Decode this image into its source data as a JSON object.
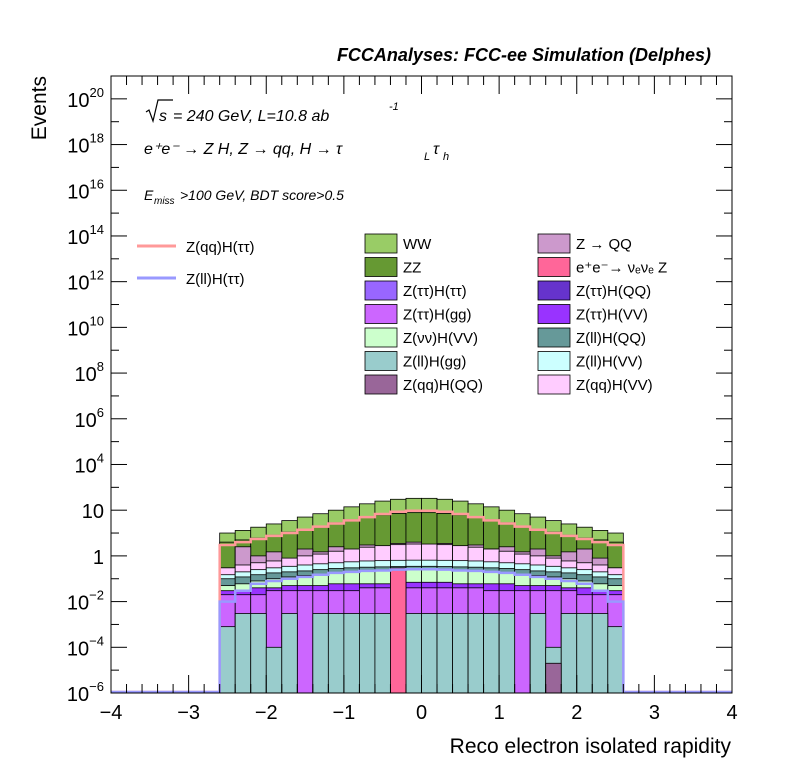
{
  "header": "FCCAnalyses: FCC-ee Simulation (Delphes)",
  "annotations": {
    "energy": "= 240 GeV, L=10.8 ab",
    "lumi_exp": "-1",
    "process": "e⁺e⁻ → Z H, Z  → qq, H  → τ",
    "cut_pre": "E",
    "cut_sub": "miss",
    "cut_post": ">100 GeV, BDT score>0.5"
  },
  "chart_data": {
    "type": "area",
    "xlabel": "Reco electron isolated rapidity",
    "ylabel": "Events",
    "xlim": [
      -4,
      4
    ],
    "ylim": [
      1e-06,
      1e+21
    ],
    "ylog": true,
    "grid": false,
    "legend_placement": "top",
    "x_ticks": [
      "−4",
      "−3",
      "−2",
      "−1",
      "0",
      "1",
      "2",
      "3",
      "4"
    ],
    "y_ticks": [
      {
        "base": "10",
        "exp": "−6"
      },
      {
        "base": "10",
        "exp": "−4"
      },
      {
        "base": "10",
        "exp": "−2"
      },
      {
        "base": "1",
        "exp": ""
      },
      {
        "base": "10",
        "exp": ""
      },
      {
        "base": "10",
        "exp": "4"
      },
      {
        "base": "10",
        "exp": "6"
      },
      {
        "base": "10",
        "exp": "8"
      },
      {
        "base": "10",
        "exp": "10"
      },
      {
        "base": "10",
        "exp": "12"
      },
      {
        "base": "10",
        "exp": "14"
      },
      {
        "base": "10",
        "exp": "16"
      },
      {
        "base": "10",
        "exp": "18"
      },
      {
        "base": "10",
        "exp": "20"
      }
    ],
    "y_tick_values": [
      1e-06,
      0.0001,
      0.01,
      1,
      100.0,
      10000.0,
      1000000.0,
      100000000.0,
      10000000000.0,
      1000000000000.0,
      100000000000000.0,
      1e+16,
      1e+18,
      1e+20
    ],
    "bin_edges": [
      -2.6,
      -2.4,
      -2.2,
      -2.0,
      -1.8,
      -1.6,
      -1.4,
      -1.2,
      -1.0,
      -0.8,
      -0.6,
      -0.4,
      -0.2,
      0.0,
      0.2,
      0.4,
      0.6,
      0.8,
      1.0,
      1.2,
      1.4,
      1.6,
      1.8,
      2.0,
      2.2,
      2.4,
      2.6
    ],
    "stacked_cumulative": [
      {
        "name": "WW",
        "color": "#99cc66",
        "values": [
          10,
          13,
          18,
          25,
          35,
          50,
          70,
          100,
          140,
          190,
          250,
          300,
          330,
          330,
          300,
          250,
          190,
          140,
          100,
          70,
          50,
          35,
          25,
          18,
          13,
          10
        ]
      },
      {
        "name": "ZZ",
        "color": "#669933",
        "values": [
          4,
          5,
          6,
          8,
          11,
          15,
          20,
          28,
          38,
          50,
          62,
          72,
          78,
          78,
          72,
          62,
          50,
          38,
          28,
          20,
          15,
          11,
          8,
          6,
          5,
          4
        ]
      },
      {
        "name": "Z → QQ",
        "color": "#cc99cc",
        "values": [
          0.3,
          2.5,
          1.0,
          1.5,
          0.6,
          2.0,
          1.5,
          2.5,
          1.2,
          3.0,
          2.0,
          3.5,
          4.0,
          3.0,
          3.5,
          2.5,
          3.0,
          2.0,
          2.5,
          1.5,
          2.0,
          1.0,
          1.5,
          2.0,
          0.8,
          0.3
        ]
      },
      {
        "name": "Z(qq)H(VV)",
        "color": "#ffccff",
        "values": [
          0.3,
          0.4,
          0.5,
          0.6,
          0.8,
          1.0,
          1.2,
          1.6,
          2.0,
          2.4,
          2.8,
          3.1,
          3.3,
          3.3,
          3.1,
          2.8,
          2.4,
          2.0,
          1.6,
          1.2,
          1.0,
          0.8,
          0.6,
          0.5,
          0.4,
          0.3
        ]
      },
      {
        "name": "Z(ll)H(VV)",
        "color": "#ccffff",
        "values": [
          0.15,
          0.2,
          0.25,
          0.3,
          0.35,
          0.4,
          0.45,
          0.5,
          0.55,
          0.6,
          0.62,
          0.64,
          0.65,
          0.65,
          0.64,
          0.62,
          0.6,
          0.55,
          0.5,
          0.45,
          0.4,
          0.35,
          0.3,
          0.25,
          0.2,
          0.15
        ]
      },
      {
        "name": "Z(ll)H(QQ)",
        "color": "#669999",
        "values": [
          0.1,
          0.12,
          0.15,
          0.18,
          0.2,
          0.22,
          0.25,
          0.28,
          0.3,
          0.32,
          0.33,
          0.34,
          0.35,
          0.35,
          0.34,
          0.33,
          0.32,
          0.3,
          0.28,
          0.25,
          0.22,
          0.2,
          0.18,
          0.15,
          0.12,
          0.1
        ]
      },
      {
        "name": "Z(νν)H(VV)",
        "color": "#ccffcc",
        "values": [
          0.05,
          0.06,
          0.08,
          0.1,
          0.12,
          0.14,
          0.16,
          0.18,
          0.2,
          0.22,
          0.23,
          0.24,
          0.25,
          0.25,
          0.24,
          0.23,
          0.22,
          0.2,
          0.18,
          0.16,
          0.14,
          0.12,
          0.1,
          0.08,
          0.06,
          0.05
        ]
      },
      {
        "name": "Z(ττ)H(VV)",
        "color": "#9933ff",
        "values": [
          0.03,
          0.03,
          0.04,
          0.04,
          0.05,
          0.05,
          0.05,
          0.06,
          0.06,
          0.06,
          0.06,
          0.07,
          0.07,
          0.07,
          0.07,
          0.06,
          0.06,
          0.06,
          0.06,
          0.05,
          0.05,
          0.05,
          0.04,
          0.04,
          0.03,
          0.03
        ]
      },
      {
        "name": "Z(ττ)H(gg)",
        "color": "#cc66ff",
        "values": [
          0.02,
          0.02,
          0.02,
          0.03,
          0.03,
          0.03,
          0.03,
          0.03,
          0.03,
          0.04,
          0.04,
          0.04,
          0.04,
          0.04,
          0.04,
          0.04,
          0.04,
          0.03,
          0.03,
          0.03,
          0.03,
          0.03,
          0.03,
          0.02,
          0.02,
          0.02
        ]
      },
      {
        "name": "Z(ll)H(gg)",
        "color": "#99cccc",
        "values": [
          0.0008,
          0.003,
          0.003,
          0.0001,
          0.003,
          1e-06,
          0.003,
          0.003,
          0.003,
          0.003,
          0.003,
          0.003,
          0.003,
          0.003,
          0.003,
          0.003,
          0.003,
          0.003,
          0.003,
          1e-06,
          0.003,
          0.0001,
          0.003,
          0.003,
          0.003,
          0.0008
        ]
      }
    ],
    "spikes": [
      {
        "name": "e⁺e⁻→ νₑνₑ Z",
        "color": "#ff6699",
        "bin": 11,
        "value": 0.3
      },
      {
        "name": "Z(qq)H(QQ)",
        "color": "#996699",
        "bin": 21,
        "value": 2e-05
      }
    ],
    "lines": [
      {
        "name": "Z(qq)H(ττ)",
        "color": "#ff9999",
        "values": [
          3,
          4,
          5.5,
          7.5,
          10,
          14,
          19,
          26,
          36,
          50,
          68,
          85,
          95,
          95,
          85,
          68,
          50,
          36,
          26,
          19,
          14,
          10,
          7.5,
          5.5,
          4,
          3
        ]
      },
      {
        "name": "Z(ll)H(ττ)",
        "color": "#9999ff",
        "values": [
          0.01,
          0.03,
          0.06,
          0.08,
          0.1,
          0.12,
          0.15,
          0.18,
          0.2,
          0.22,
          0.23,
          0.25,
          0.26,
          0.26,
          0.25,
          0.23,
          0.22,
          0.2,
          0.18,
          0.15,
          0.12,
          0.1,
          0.08,
          0.06,
          0.03,
          0.01
        ]
      }
    ],
    "legend_fill": [
      {
        "name": "WW",
        "color": "#99cc66"
      },
      {
        "name": "Z → QQ",
        "color": "#cc99cc"
      },
      {
        "name": "ZZ",
        "color": "#669933"
      },
      {
        "name": "e⁺e⁻→ νₑνₑ Z",
        "color": "#ff6699"
      },
      {
        "name": "Z(ττ)H(ττ)",
        "color": "#9966ff"
      },
      {
        "name": "Z(ττ)H(QQ)",
        "color": "#6633cc"
      },
      {
        "name": "Z(ττ)H(gg)",
        "color": "#cc66ff"
      },
      {
        "name": "Z(ττ)H(VV)",
        "color": "#9933ff"
      },
      {
        "name": "Z(νν)H(VV)",
        "color": "#ccffcc"
      },
      {
        "name": "Z(ll)H(QQ)",
        "color": "#669999"
      },
      {
        "name": "Z(ll)H(gg)",
        "color": "#99cccc"
      },
      {
        "name": "Z(ll)H(VV)",
        "color": "#ccffff"
      },
      {
        "name": "Z(qq)H(QQ)",
        "color": "#996699"
      },
      {
        "name": "Z(qq)H(VV)",
        "color": "#ffccff"
      }
    ]
  }
}
